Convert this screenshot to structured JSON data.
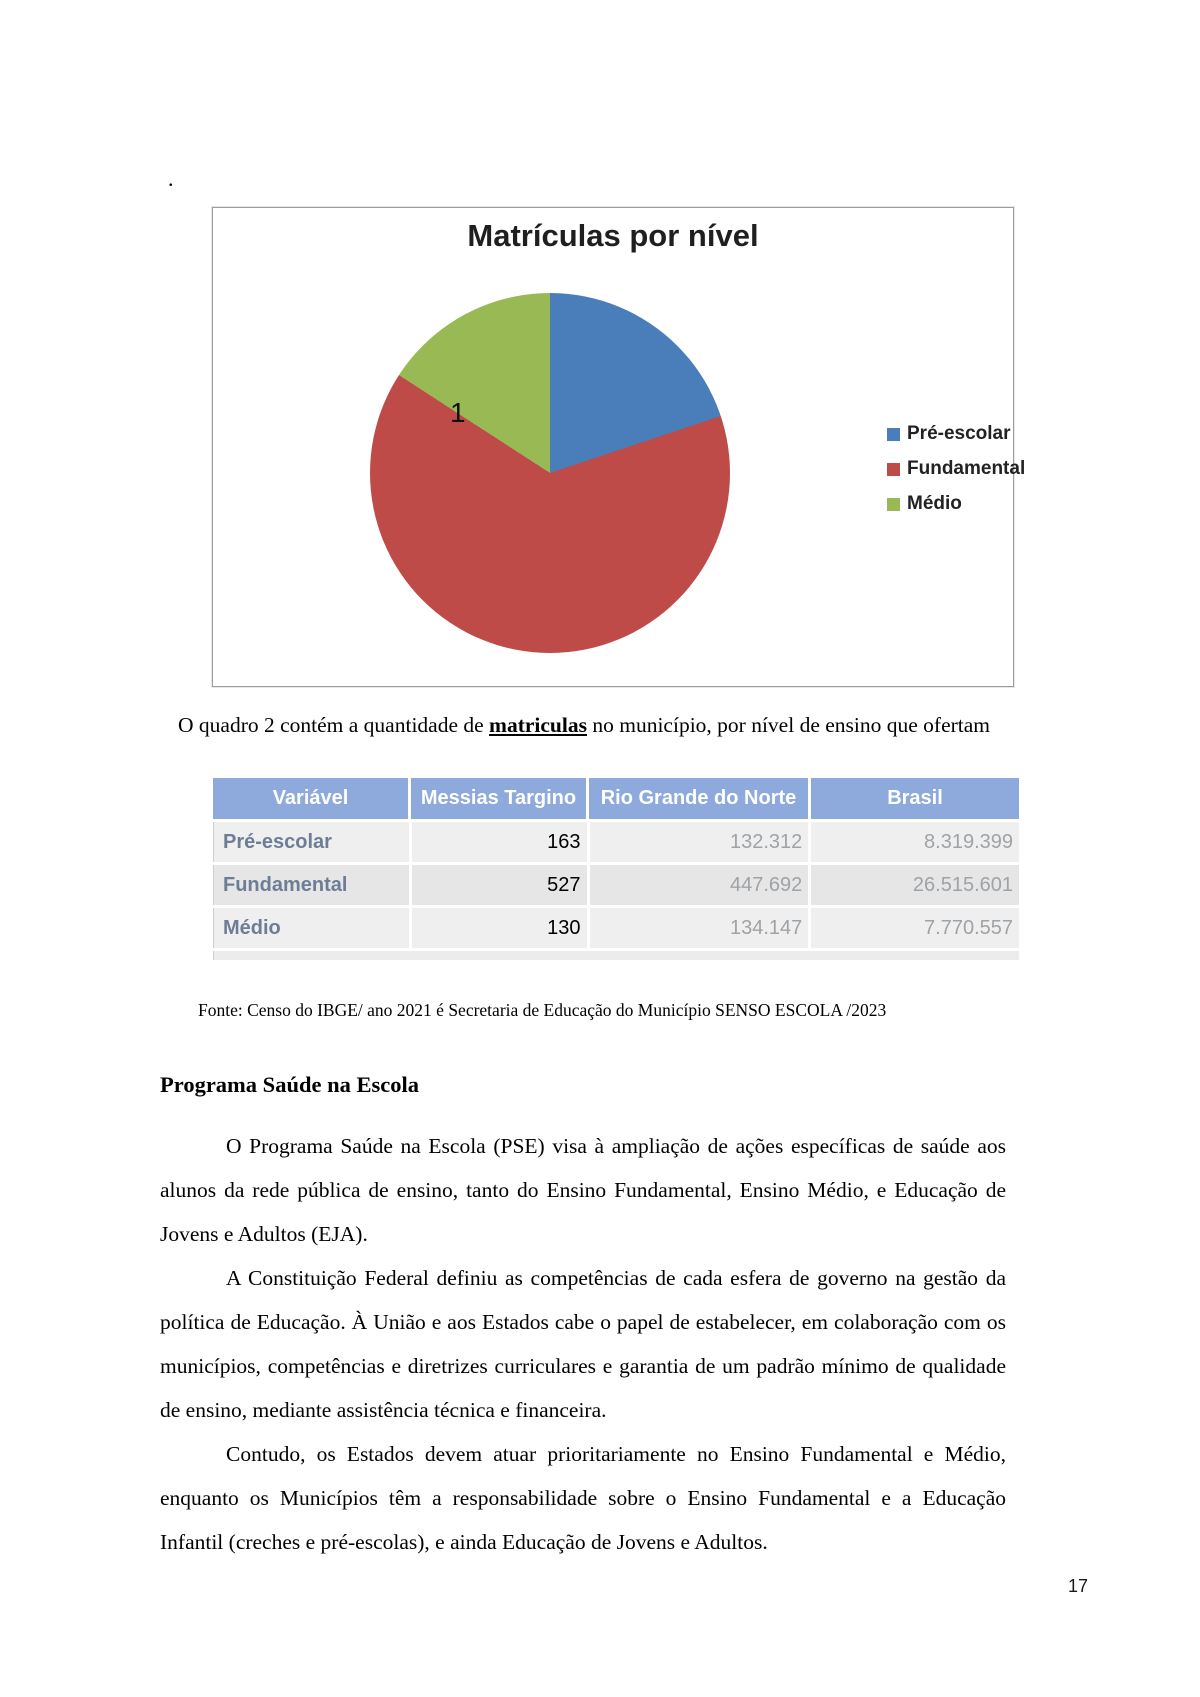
{
  "page": {
    "stray_mark": ".",
    "number": "17"
  },
  "chart": {
    "title": "Matrículas por nível",
    "pie_label": "1",
    "legend": [
      {
        "label": "Pré-escolar",
        "color": "#4A7EBB"
      },
      {
        "label": "Fundamental",
        "color": "#BE4B48"
      },
      {
        "label": "Médio",
        "color": "#98B954"
      }
    ]
  },
  "chart_data": {
    "type": "pie",
    "title": "Matrículas por nível",
    "categories": [
      "Pré-escolar",
      "Fundamental",
      "Médio"
    ],
    "values": [
      163,
      527,
      130
    ],
    "colors": [
      "#4A7EBB",
      "#BE4B48",
      "#98B954"
    ],
    "legend_position": "right",
    "annotations": [
      "1"
    ],
    "start_angle_deg": 0,
    "direction": "clockwise"
  },
  "intro": {
    "text_before": "O quadro 2 contém a quantidade de ",
    "text_emphasis": "matriculas",
    "text_after": " no município, por nível de ensino que ofertam"
  },
  "table": {
    "headers": [
      "Variável",
      "Messias Targino",
      "Rio Grande do Norte",
      "Brasil"
    ],
    "rows": [
      {
        "variavel": "Pré-escolar",
        "messias_targino": "163",
        "rio_grande_do_norte": "132.312",
        "brasil": "8.319.399"
      },
      {
        "variavel": "Fundamental",
        "messias_targino": "527",
        "rio_grande_do_norte": "447.692",
        "brasil": "26.515.601"
      },
      {
        "variavel": "Médio",
        "messias_targino": "130",
        "rio_grande_do_norte": "134.147",
        "brasil": "7.770.557"
      }
    ]
  },
  "fonte": "Fonte: Censo do IBGE/ ano 2021 é Secretaria de Educação do Município SENSO ESCOLA /2023",
  "section": {
    "heading": "Programa Saúde na Escola",
    "paragraphs": [
      "O Programa Saúde na Escola (PSE) visa à ampliação de ações específicas de saúde aos alunos da rede pública de ensino, tanto do Ensino Fundamental, Ensino Médio, e Educação de Jovens e Adultos (EJA).",
      "A Constituição Federal  definiu as competências de cada esfera de governo na gestão da política de Educação. À União e aos Estados cabe o papel de estabelecer, em colaboração com os municípios, competências e diretrizes curriculares e garantia de um padrão mínimo de qualidade de ensino, mediante assistência técnica e financeira.",
      "Contudo, os Estados devem atuar prioritariamente no Ensino Fundamental e Médio, enquanto os Municípios têm a responsabilidade sobre o Ensino Fundamental e a Educação Infantil (creches e pré-escolas), e ainda Educação de Jovens e Adultos."
    ]
  }
}
